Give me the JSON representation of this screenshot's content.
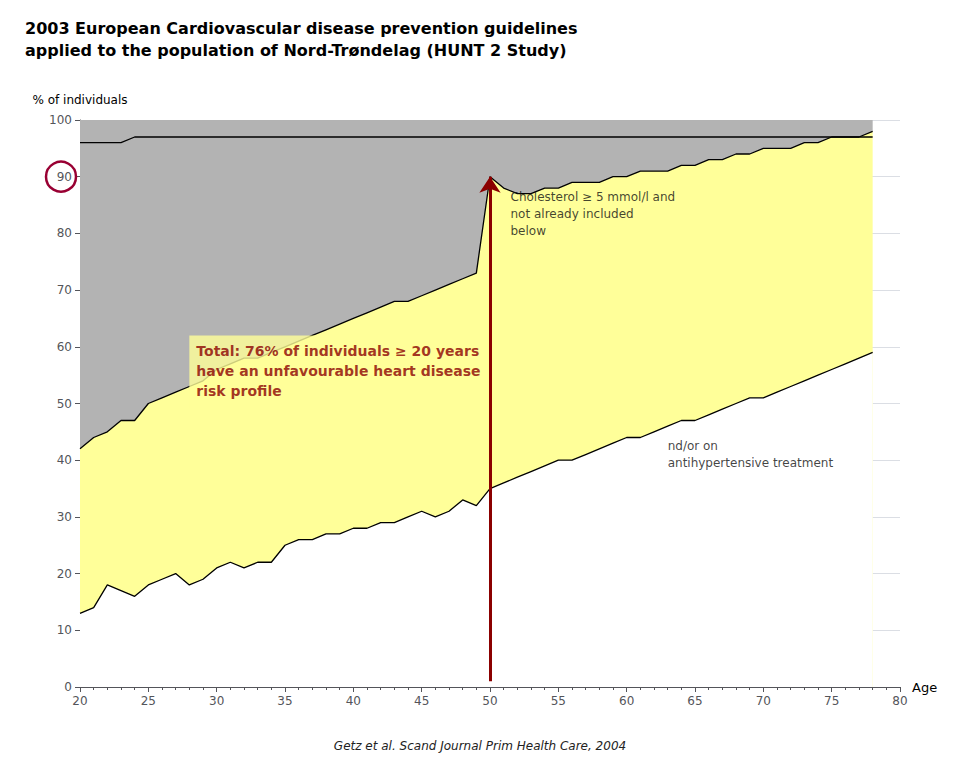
{
  "chart_data": {
    "type": "line",
    "title": "2003 European Cardiovascular disease prevention guidelines\napplied to the population of Nord-Trøndelag (HUNT 2 Study)",
    "x_label": "Age",
    "y_label": "% of individuals",
    "footnote": "Getz et al. Scand Journal Prim Health Care, 2004",
    "x": [
      20,
      21,
      22,
      23,
      24,
      25,
      26,
      27,
      28,
      29,
      30,
      31,
      32,
      33,
      34,
      35,
      36,
      37,
      38,
      39,
      40,
      41,
      42,
      43,
      44,
      45,
      46,
      47,
      48,
      49,
      50,
      51,
      52,
      53,
      54,
      55,
      56,
      57,
      58,
      59,
      60,
      61,
      62,
      63,
      64,
      65,
      66,
      67,
      68,
      69,
      70,
      71,
      72,
      73,
      74,
      75,
      76,
      77,
      78
    ],
    "series": [
      {
        "values": [
          13,
          14,
          18,
          17,
          16,
          18,
          19,
          20,
          18,
          19,
          21,
          22,
          21,
          22,
          22,
          25,
          26,
          26,
          27,
          27,
          28,
          28,
          29,
          29,
          30,
          31,
          30,
          31,
          33,
          32,
          35,
          36,
          37,
          38,
          39,
          40,
          40,
          41,
          42,
          43,
          44,
          44,
          45,
          46,
          47,
          47,
          48,
          49,
          50,
          51,
          51,
          52,
          53,
          54,
          55,
          56,
          57,
          58,
          59
        ],
        "color": "#000000",
        "fill_below": "#ffffff"
      },
      {
        "values": [
          42,
          44,
          45,
          47,
          47,
          50,
          51,
          52,
          53,
          54,
          56,
          57,
          58,
          58,
          59,
          60,
          61,
          62,
          63,
          64,
          65,
          66,
          67,
          68,
          68,
          69,
          70,
          71,
          72,
          73,
          90,
          88,
          87,
          87,
          88,
          88,
          89,
          89,
          89,
          90,
          90,
          91,
          91,
          91,
          92,
          92,
          93,
          93,
          94,
          94,
          95,
          95,
          95,
          96,
          96,
          97,
          97,
          97,
          98
        ],
        "color": "#000000",
        "fill_below": "#ffff99",
        "fill_above": "#b3b3b3"
      },
      {
        "values": [
          96,
          96,
          96,
          96,
          97,
          97,
          97,
          97,
          97,
          97,
          97,
          97,
          97,
          97,
          97,
          97,
          97,
          97,
          97,
          97,
          97,
          97,
          97,
          97,
          97,
          97,
          97,
          97,
          97,
          97,
          97,
          97,
          97,
          97,
          97,
          97,
          97,
          97,
          97,
          97,
          97,
          97,
          97,
          97,
          97,
          97,
          97,
          97,
          97,
          97,
          97,
          97,
          97,
          97,
          97,
          97,
          97,
          97,
          97
        ],
        "color": "#000000"
      }
    ],
    "xlim": [
      20,
      80
    ],
    "xticks": [
      20,
      25,
      30,
      35,
      40,
      45,
      50,
      55,
      60,
      65,
      70,
      75,
      80
    ],
    "ylim": [
      0,
      100
    ],
    "yticks": [
      0,
      10,
      20,
      30,
      40,
      50,
      60,
      70,
      80,
      90,
      100
    ],
    "grid": true,
    "arrow": {
      "x": 50,
      "y_from": 1,
      "y_to": 90,
      "color": "#8b0000"
    },
    "annotations": [
      {
        "text": "Cholesterol ≥ 5 mmol/l and\nnot already included\nbelow",
        "x": 51.5,
        "y": 88,
        "color": "#111111"
      },
      {
        "text": "nd/or on\nantihypertensive treatment",
        "x": 63,
        "y": 44,
        "color": "#111111"
      },
      {
        "text": "Total: 76% of individuals ≥ 20 years\nhave an unfavourable heart disease\nrisk profile",
        "x": 28,
        "y": 62,
        "color": "#8b0000",
        "background": "#ffff99"
      }
    ],
    "highlight_tick": {
      "axis": "y",
      "value": 90,
      "color": "#990033"
    }
  }
}
